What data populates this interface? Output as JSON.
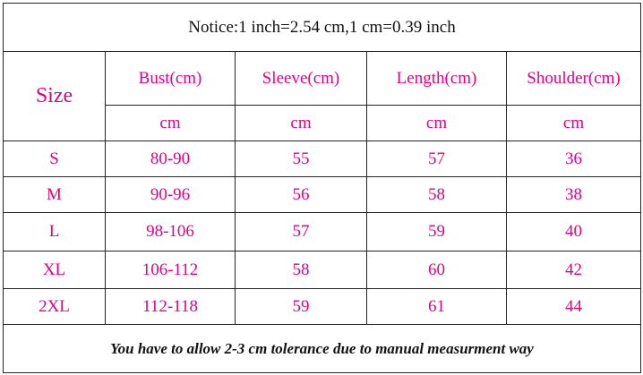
{
  "notice": "Notice:1 inch=2.54 cm,1 cm=0.39 inch",
  "table": {
    "size_label": "Size",
    "columns": [
      "Bust(cm)",
      "Sleeve(cm)",
      "Length(cm)",
      "Shoulder(cm)"
    ],
    "units": [
      "cm",
      "cm",
      "cm",
      "cm"
    ],
    "rows": [
      [
        "S",
        "80-90",
        "55",
        "57",
        "36"
      ],
      [
        "M",
        "90-96",
        "56",
        "58",
        "38"
      ],
      [
        "L",
        "98-106",
        "57",
        "59",
        "40"
      ],
      [
        "XL",
        "106-112",
        "58",
        "60",
        "42"
      ],
      [
        "2XL",
        "112-118",
        "59",
        "61",
        "44"
      ]
    ]
  },
  "footer": "You have to allow 2-3 cm tolerance due to manual measurment way"
}
